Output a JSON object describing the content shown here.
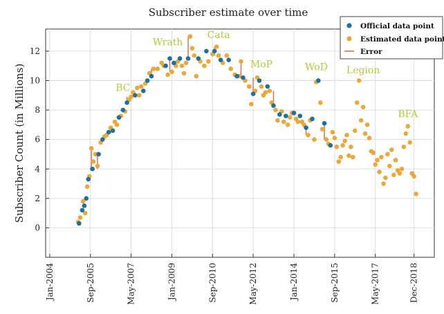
{
  "chart_data": {
    "type": "scatter",
    "title": "Subscriber estimate over time",
    "xlabel": "",
    "ylabel": "Subscriber Count  (in Millions)",
    "xlim": [
      "2003-11-01",
      "2019-10-01"
    ],
    "ylim": [
      -2,
      13.5
    ],
    "y_ticks": [
      0,
      2,
      4,
      6,
      8,
      10,
      12
    ],
    "x_ticks": [
      {
        "label": "Jan-2004",
        "date": "2004-01-01"
      },
      {
        "label": "Sep-2005",
        "date": "2005-09-01"
      },
      {
        "label": "May-2007",
        "date": "2007-05-01"
      },
      {
        "label": "Jan-2009",
        "date": "2009-01-01"
      },
      {
        "label": "Sep-2010",
        "date": "2010-09-01"
      },
      {
        "label": "May-2012",
        "date": "2012-05-01"
      },
      {
        "label": "Jan-2014",
        "date": "2014-01-01"
      },
      {
        "label": "Sep-2015",
        "date": "2015-09-01"
      },
      {
        "label": "May-2017",
        "date": "2017-05-01"
      },
      {
        "label": "Dec-2018",
        "date": "2018-12-01"
      }
    ],
    "grid": true,
    "legend_position": "top-right",
    "legend": [
      {
        "label": "Official data point",
        "marker": "dot",
        "color": "#1f6f9f"
      },
      {
        "label": "Estimated data point",
        "marker": "dot",
        "color": "#e8a93a"
      },
      {
        "label": "Error",
        "marker": "line",
        "color": "#d9734a"
      }
    ],
    "annotations": [
      {
        "text": "BC",
        "date": "2007-01-01",
        "y": 9.3
      },
      {
        "text": "Wrath",
        "date": "2008-11-01",
        "y": 12.4
      },
      {
        "text": "Cata",
        "date": "2010-12-01",
        "y": 12.9
      },
      {
        "text": "MoP",
        "date": "2012-09-01",
        "y": 10.9
      },
      {
        "text": "WoD",
        "date": "2014-12-01",
        "y": 10.7
      },
      {
        "text": "Legion",
        "date": "2016-11-01",
        "y": 10.5
      },
      {
        "text": "BFA",
        "date": "2018-09-01",
        "y": 7.5
      }
    ],
    "series": [
      {
        "name": "Official data point",
        "color": "#1f6f9f",
        "points": [
          [
            "2005-03-15",
            0.3
          ],
          [
            "2005-05-01",
            1.2
          ],
          [
            "2005-06-01",
            1.5
          ],
          [
            "2005-07-01",
            2.0
          ],
          [
            "2005-08-01",
            3.3
          ],
          [
            "2005-10-01",
            4.0
          ],
          [
            "2006-01-01",
            5.0
          ],
          [
            "2006-03-01",
            6.0
          ],
          [
            "2006-06-01",
            6.5
          ],
          [
            "2006-08-01",
            6.6
          ],
          [
            "2006-11-01",
            7.5
          ],
          [
            "2007-01-01",
            8.0
          ],
          [
            "2007-03-01",
            8.5
          ],
          [
            "2007-07-01",
            9.0
          ],
          [
            "2007-11-01",
            9.3
          ],
          [
            "2008-01-01",
            10.0
          ],
          [
            "2008-03-01",
            10.3
          ],
          [
            "2008-10-01",
            11.0
          ],
          [
            "2008-12-01",
            11.5
          ],
          [
            "2009-02-01",
            11.2
          ],
          [
            "2009-05-01",
            11.5
          ],
          [
            "2009-09-01",
            11.5
          ],
          [
            "2010-02-01",
            11.5
          ],
          [
            "2010-06-01",
            12.0
          ],
          [
            "2010-10-01",
            12.0
          ],
          [
            "2011-01-01",
            11.4
          ],
          [
            "2011-05-01",
            11.4
          ],
          [
            "2011-09-01",
            10.3
          ],
          [
            "2011-12-01",
            10.2
          ],
          [
            "2012-05-01",
            9.1
          ],
          [
            "2012-08-01",
            10.0
          ],
          [
            "2012-12-01",
            9.6
          ],
          [
            "2013-03-01",
            8.3
          ],
          [
            "2013-06-01",
            7.7
          ],
          [
            "2013-09-01",
            7.6
          ],
          [
            "2014-01-01",
            7.8
          ],
          [
            "2014-04-01",
            7.6
          ],
          [
            "2014-07-01",
            6.8
          ],
          [
            "2014-10-01",
            7.4
          ],
          [
            "2015-01-01",
            10.0
          ],
          [
            "2015-04-01",
            7.1
          ],
          [
            "2015-07-01",
            5.6
          ]
        ]
      },
      {
        "name": "Estimated data point",
        "color": "#e8a93a",
        "points": [
          [
            "2005-03-01",
            0.4
          ],
          [
            "2005-04-01",
            0.7
          ],
          [
            "2005-05-15",
            1.8
          ],
          [
            "2005-06-15",
            1.0
          ],
          [
            "2005-07-15",
            2.8
          ],
          [
            "2005-08-15",
            3.5
          ],
          [
            "2005-09-15",
            5.4
          ],
          [
            "2005-10-15",
            4.5
          ],
          [
            "2005-11-15",
            5.0
          ],
          [
            "2005-12-15",
            4.2
          ],
          [
            "2006-02-01",
            5.8
          ],
          [
            "2006-04-01",
            6.2
          ],
          [
            "2006-05-01",
            6.3
          ],
          [
            "2006-07-01",
            6.8
          ],
          [
            "2006-09-01",
            7.2
          ],
          [
            "2006-10-01",
            7.0
          ],
          [
            "2006-12-01",
            7.6
          ],
          [
            "2007-02-01",
            7.9
          ],
          [
            "2007-04-01",
            8.7
          ],
          [
            "2007-05-01",
            8.9
          ],
          [
            "2007-06-01",
            9.2
          ],
          [
            "2007-08-01",
            9.5
          ],
          [
            "2007-09-01",
            9.0
          ],
          [
            "2007-10-01",
            9.6
          ],
          [
            "2007-12-01",
            9.8
          ],
          [
            "2008-02-01",
            10.5
          ],
          [
            "2008-04-01",
            10.8
          ],
          [
            "2008-06-01",
            10.8
          ],
          [
            "2008-08-01",
            11.2
          ],
          [
            "2008-09-01",
            11.0
          ],
          [
            "2008-11-01",
            10.4
          ],
          [
            "2009-01-01",
            10.6
          ],
          [
            "2009-03-01",
            11.0
          ],
          [
            "2009-04-01",
            11.3
          ],
          [
            "2009-06-01",
            11.0
          ],
          [
            "2009-07-01",
            10.5
          ],
          [
            "2009-08-01",
            11.2
          ],
          [
            "2009-10-01",
            13.0
          ],
          [
            "2009-11-01",
            12.2
          ],
          [
            "2009-12-01",
            11.7
          ],
          [
            "2010-01-01",
            10.3
          ],
          [
            "2010-03-01",
            11.3
          ],
          [
            "2010-05-01",
            11.0
          ],
          [
            "2010-07-01",
            11.3
          ],
          [
            "2010-09-01",
            11.8
          ],
          [
            "2010-11-01",
            12.3
          ],
          [
            "2010-12-01",
            11.7
          ],
          [
            "2011-02-01",
            11.2
          ],
          [
            "2011-04-01",
            11.7
          ],
          [
            "2011-06-01",
            10.8
          ],
          [
            "2011-08-01",
            10.4
          ],
          [
            "2011-10-01",
            10.3
          ],
          [
            "2011-11-01",
            11.3
          ],
          [
            "2012-01-01",
            10.0
          ],
          [
            "2012-03-01",
            9.6
          ],
          [
            "2012-04-01",
            8.4
          ],
          [
            "2012-06-01",
            9.3
          ],
          [
            "2012-07-01",
            10.2
          ],
          [
            "2012-09-01",
            9.6
          ],
          [
            "2012-10-01",
            9.0
          ],
          [
            "2012-11-01",
            9.2
          ],
          [
            "2013-01-01",
            9.3
          ],
          [
            "2013-02-01",
            8.5
          ],
          [
            "2013-04-01",
            8.0
          ],
          [
            "2013-05-01",
            7.3
          ],
          [
            "2013-07-01",
            7.9
          ],
          [
            "2013-08-01",
            7.2
          ],
          [
            "2013-10-01",
            7.0
          ],
          [
            "2013-11-01",
            7.5
          ],
          [
            "2013-12-01",
            7.8
          ],
          [
            "2014-02-01",
            7.4
          ],
          [
            "2014-03-01",
            7.2
          ],
          [
            "2014-05-01",
            7.2
          ],
          [
            "2014-06-01",
            7.0
          ],
          [
            "2014-08-01",
            6.3
          ],
          [
            "2014-09-01",
            7.3
          ],
          [
            "2014-11-01",
            6.0
          ],
          [
            "2014-12-01",
            9.9
          ],
          [
            "2015-02-01",
            8.5
          ],
          [
            "2015-03-01",
            6.7
          ],
          [
            "2015-05-01",
            6.0
          ],
          [
            "2015-06-01",
            5.7
          ],
          [
            "2015-08-01",
            6.5
          ],
          [
            "2015-09-01",
            6.1
          ],
          [
            "2015-10-01",
            5.5
          ],
          [
            "2015-11-01",
            4.5
          ],
          [
            "2015-12-01",
            4.8
          ],
          [
            "2016-01-01",
            5.6
          ],
          [
            "2016-02-01",
            5.9
          ],
          [
            "2016-03-01",
            6.3
          ],
          [
            "2016-04-01",
            4.9
          ],
          [
            "2016-05-01",
            5.5
          ],
          [
            "2016-06-01",
            4.8
          ],
          [
            "2016-07-01",
            6.6
          ],
          [
            "2016-08-01",
            8.5
          ],
          [
            "2016-09-01",
            10.0
          ],
          [
            "2016-10-01",
            7.3
          ],
          [
            "2016-11-01",
            8.2
          ],
          [
            "2016-12-01",
            6.4
          ],
          [
            "2017-01-01",
            7.0
          ],
          [
            "2017-02-01",
            6.1
          ],
          [
            "2017-03-01",
            5.2
          ],
          [
            "2017-04-01",
            5.1
          ],
          [
            "2017-05-01",
            4.3
          ],
          [
            "2017-06-01",
            4.6
          ],
          [
            "2017-07-01",
            3.8
          ],
          [
            "2017-08-01",
            4.8
          ],
          [
            "2017-09-01",
            3.0
          ],
          [
            "2017-10-01",
            3.4
          ],
          [
            "2017-11-01",
            5.0
          ],
          [
            "2017-12-01",
            4.2
          ],
          [
            "2018-01-01",
            5.3
          ],
          [
            "2018-02-01",
            3.6
          ],
          [
            "2018-03-01",
            4.6
          ],
          [
            "2018-04-01",
            3.9
          ],
          [
            "2018-05-01",
            3.7
          ],
          [
            "2018-06-01",
            4.0
          ],
          [
            "2018-07-01",
            5.5
          ],
          [
            "2018-08-01",
            6.4
          ],
          [
            "2018-09-01",
            6.9
          ],
          [
            "2018-10-01",
            5.8
          ],
          [
            "2018-11-01",
            3.7
          ],
          [
            "2018-12-01",
            3.5
          ],
          [
            "2019-01-01",
            2.3
          ]
        ]
      }
    ],
    "errors": [
      [
        "2005-09-15",
        3.9,
        5.4
      ],
      [
        "2005-12-15",
        4.0,
        5.0
      ],
      [
        "2007-03-01",
        8.5,
        8.9
      ],
      [
        "2008-03-01",
        10.3,
        10.8
      ],
      [
        "2008-12-01",
        10.6,
        11.5
      ],
      [
        "2009-09-01",
        11.5,
        13.0
      ],
      [
        "2010-10-01",
        11.7,
        12.3
      ],
      [
        "2011-11-01",
        10.2,
        11.3
      ],
      [
        "2012-05-01",
        9.1,
        10.2
      ],
      [
        "2013-03-01",
        8.3,
        9.3
      ],
      [
        "2014-07-01",
        6.3,
        6.8
      ],
      [
        "2015-04-01",
        6.0,
        7.1
      ]
    ]
  }
}
